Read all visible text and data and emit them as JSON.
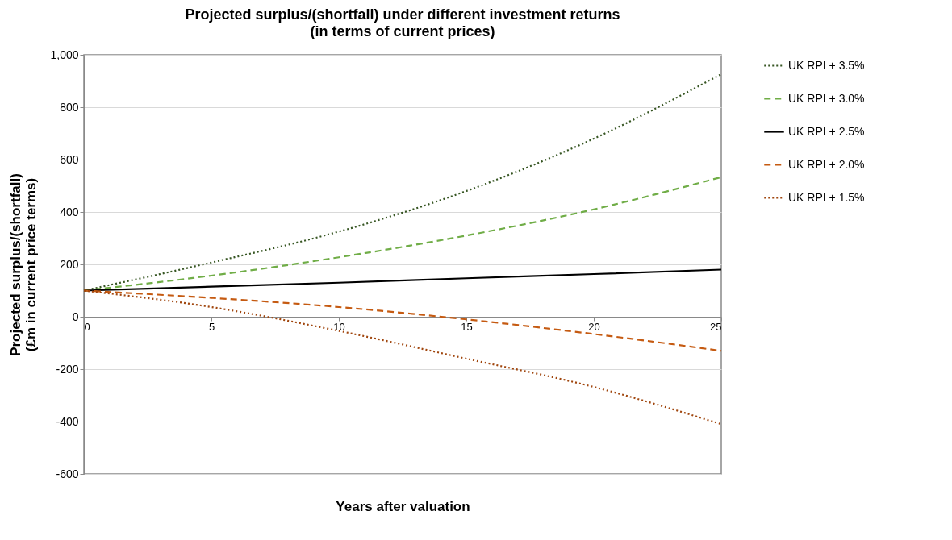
{
  "chart_data": {
    "type": "line",
    "title": "Projected surplus/(shortfall) under different investment returns",
    "subtitle": "(in terms of current prices)",
    "xlabel": "Years after valuation",
    "ylabel": "Projected surplus/(shortfall)\n(£m in current price terms)",
    "x": [
      0,
      5,
      10,
      15,
      20,
      25
    ],
    "series": [
      {
        "name": "UK RPI + 3.5%",
        "color": "#375623",
        "line_style": "dotted",
        "values": [
          100,
          207,
          325,
          480,
          680,
          926
        ]
      },
      {
        "name": "UK RPI + 3.0%",
        "color": "#70ad47",
        "line_style": "dashed",
        "values": [
          100,
          157,
          227,
          310,
          410,
          533
        ]
      },
      {
        "name": "UK RPI + 2.5%",
        "color": "#000000",
        "line_style": "solid",
        "values": [
          100,
          115,
          130,
          147,
          163,
          180
        ]
      },
      {
        "name": "UK RPI + 2.0%",
        "color": "#c55a11",
        "line_style": "dashed",
        "values": [
          100,
          72,
          37,
          -10,
          -66,
          -130
        ]
      },
      {
        "name": "UK RPI + 1.5%",
        "color": "#a0460e",
        "line_style": "dotted",
        "values": [
          100,
          37,
          -54,
          -160,
          -268,
          -410
        ]
      }
    ],
    "xlim": [
      0,
      25
    ],
    "xticks": [
      0,
      5,
      10,
      15,
      20,
      25
    ],
    "ylim": [
      -600,
      1000
    ],
    "yticks": [
      -600,
      -400,
      -200,
      0,
      200,
      400,
      600,
      800,
      {
        "value": 1000,
        "label": "1,000"
      }
    ],
    "grid": "y",
    "legend": "right"
  }
}
